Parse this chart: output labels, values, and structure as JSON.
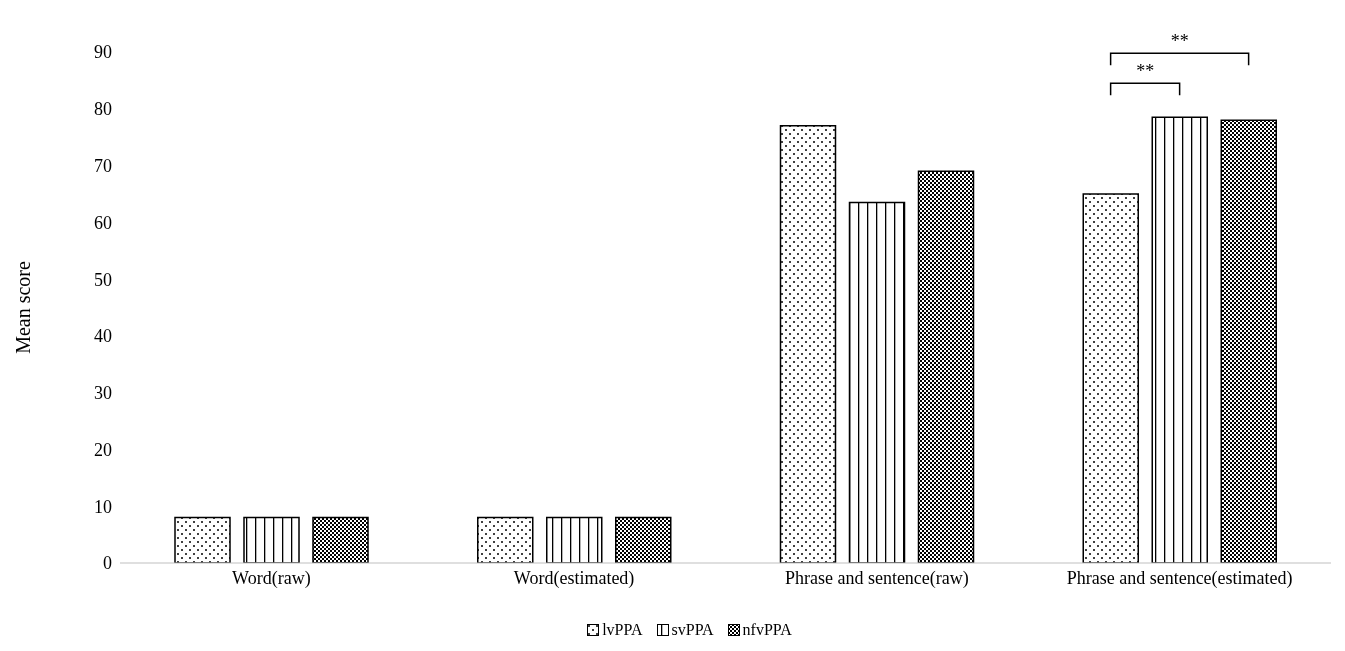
{
  "chart_data": {
    "type": "bar",
    "ylabel": "Mean score",
    "categories": [
      "Word(raw)",
      "Word(estimated)",
      "Phrase and sentence(raw)",
      "Phrase and sentence(estimated)"
    ],
    "series": [
      {
        "name": "lvPPA",
        "color": "#000000",
        "values": [
          8,
          8,
          77,
          65
        ]
      },
      {
        "name": "svPPA",
        "color": "#000000",
        "values": [
          8,
          8,
          63.5,
          78.5
        ]
      },
      {
        "name": "nfvPPA",
        "color": "#000000",
        "values": [
          8,
          8,
          69,
          78
        ]
      }
    ],
    "ylim": [
      0,
      90
    ],
    "yticks": [
      0,
      10,
      20,
      30,
      40,
      50,
      60,
      70,
      80,
      90
    ],
    "legend": "bottom",
    "annotations": [
      "**",
      "**"
    ]
  }
}
